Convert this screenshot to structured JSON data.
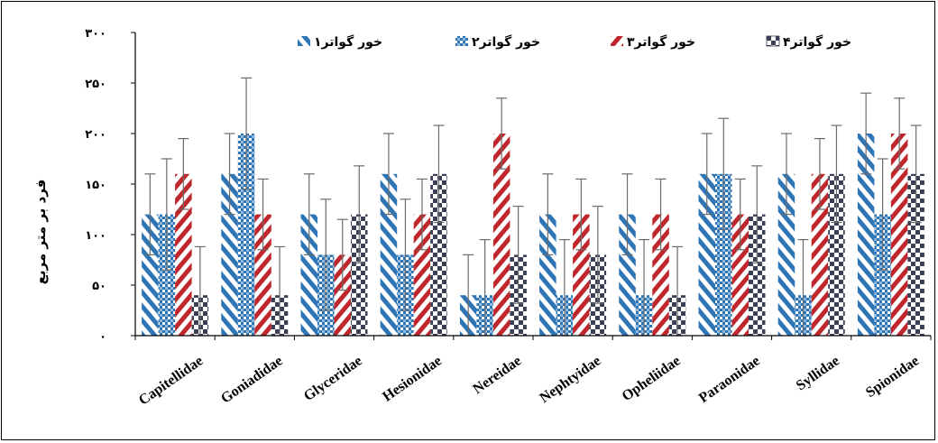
{
  "chart_data": {
    "type": "bar",
    "title": "",
    "xlabel": "",
    "ylabel": "فرد بر متر مربع",
    "ylim": [
      0,
      300
    ],
    "yticks": [
      0,
      50,
      100,
      150,
      200,
      250,
      300
    ],
    "ytick_labels": [
      "۰",
      "۵۰",
      "۱۰۰",
      "۱۵۰",
      "۲۰۰",
      "۲۵۰",
      "۳۰۰"
    ],
    "categories": [
      "Capitellidae",
      "Goniadidae",
      "Glyceridae",
      "Hesionidae",
      "Nereidae",
      "Nephtyidae",
      "Opheliidae",
      "Paraonidae",
      "Syllidae",
      "Spionidae"
    ],
    "legend_position": "top",
    "grid": false,
    "error_bars": true,
    "series": [
      {
        "name": "خور گواتر۱",
        "color": "#2E75B6",
        "pattern": "diagonal",
        "values": [
          120,
          160,
          120,
          160,
          40,
          120,
          120,
          160,
          160,
          200
        ],
        "errors": [
          40,
          40,
          40,
          40,
          40,
          40,
          40,
          40,
          40,
          40
        ]
      },
      {
        "name": "خور گواتر۲",
        "color": "#2E75B6",
        "pattern": "dots",
        "values": [
          120,
          200,
          80,
          80,
          40,
          40,
          40,
          160,
          40,
          120
        ],
        "errors": [
          55,
          55,
          55,
          55,
          55,
          55,
          55,
          55,
          55,
          55
        ]
      },
      {
        "name": "خور گواتر۳",
        "color": "#C0272D",
        "pattern": "diagonal",
        "values": [
          160,
          120,
          80,
          120,
          200,
          120,
          120,
          120,
          160,
          200
        ],
        "errors": [
          35,
          35,
          35,
          35,
          35,
          35,
          35,
          35,
          35,
          35
        ]
      },
      {
        "name": "خور گواتر۴",
        "color": "#3B3F55",
        "pattern": "checker",
        "values": [
          40,
          40,
          120,
          160,
          80,
          80,
          40,
          120,
          160,
          160
        ],
        "errors": [
          48,
          48,
          48,
          48,
          48,
          48,
          48,
          48,
          48,
          48
        ]
      }
    ]
  }
}
